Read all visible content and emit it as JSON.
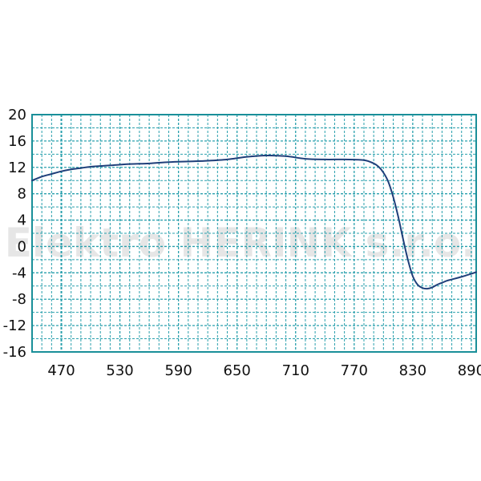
{
  "chart_data": {
    "type": "line",
    "title": "",
    "xlabel": "",
    "ylabel": "",
    "xlim": [
      440,
      895
    ],
    "ylim": [
      -16,
      20
    ],
    "x_ticks": [
      470,
      530,
      590,
      650,
      710,
      770,
      830,
      890
    ],
    "y_ticks": [
      20,
      16,
      12,
      8,
      4,
      0,
      -4,
      -8,
      -12,
      -16
    ],
    "grid": true,
    "watermark": "Elektro HERINK s.r.o.",
    "colors": {
      "line": "#1f3f7a",
      "grid": "#2aa0ad",
      "frame": "#1a8f99"
    },
    "series": [
      {
        "name": "",
        "x": [
          440,
          450,
          460,
          470,
          480,
          490,
          500,
          520,
          540,
          560,
          580,
          600,
          620,
          640,
          660,
          680,
          700,
          720,
          740,
          760,
          780,
          790,
          795,
          800,
          805,
          810,
          815,
          820,
          825,
          830,
          835,
          840,
          845,
          850,
          855,
          860,
          865,
          870,
          880,
          895
        ],
        "y": [
          10,
          10.6,
          11.0,
          11.4,
          11.7,
          11.9,
          12.1,
          12.3,
          12.5,
          12.6,
          12.8,
          12.9,
          13.0,
          13.2,
          13.6,
          13.8,
          13.7,
          13.3,
          13.2,
          13.2,
          13.1,
          12.6,
          12.1,
          11.2,
          9.8,
          7.5,
          4.6,
          1.2,
          -2.0,
          -4.5,
          -5.8,
          -6.3,
          -6.4,
          -6.2,
          -5.8,
          -5.5,
          -5.2,
          -5.0,
          -4.6,
          -3.9
        ]
      }
    ]
  }
}
